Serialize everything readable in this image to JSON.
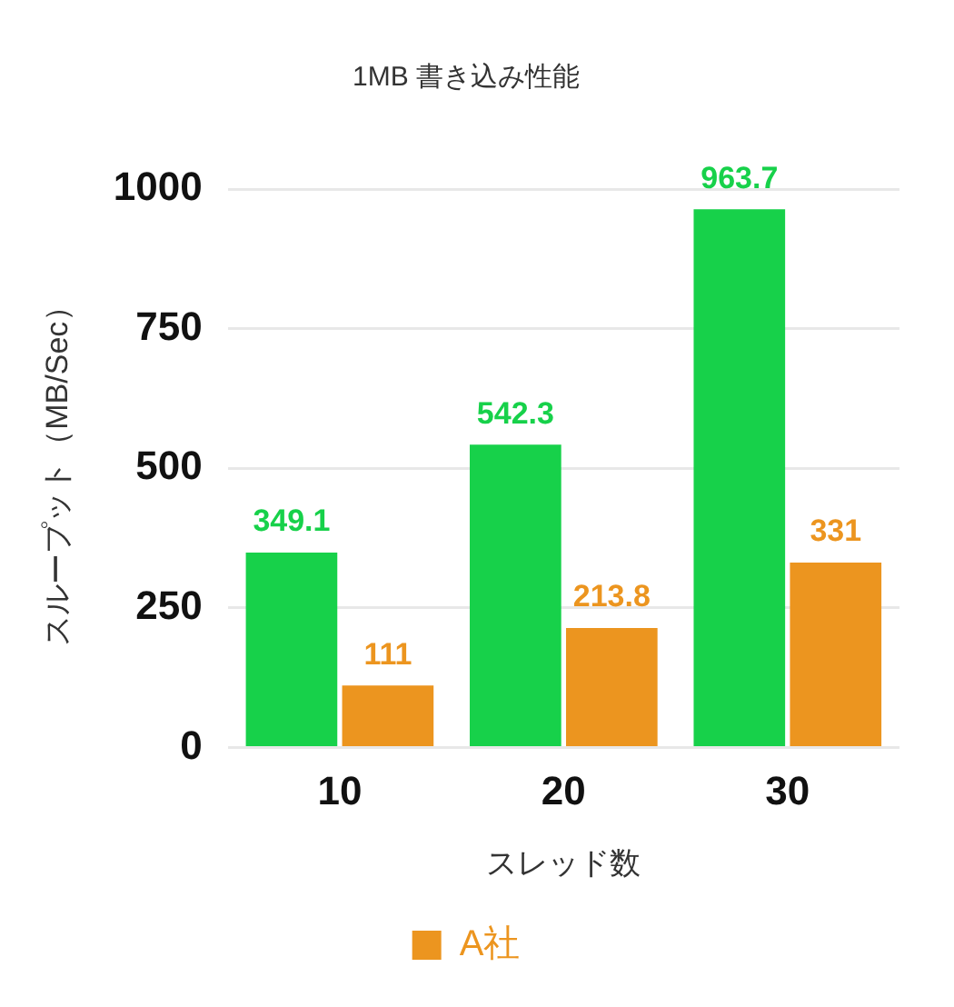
{
  "chart_data": {
    "type": "bar",
    "title": "1MB 書き込み性能",
    "xlabel": "スレッド数",
    "ylabel": "スループット（MB/Sec）",
    "categories": [
      "10",
      "20",
      "30"
    ],
    "series": [
      {
        "color": "#17d14a",
        "values": [
          349.1,
          542.3,
          963.7
        ]
      },
      {
        "name": "A社",
        "color": "#ec951f",
        "values": [
          111,
          213.8,
          331
        ]
      }
    ],
    "ylim": [
      0,
      1000
    ],
    "yticks": [
      0,
      250,
      500,
      750,
      1000
    ],
    "grid": "y",
    "legend": "bottom",
    "data_labels": true
  }
}
